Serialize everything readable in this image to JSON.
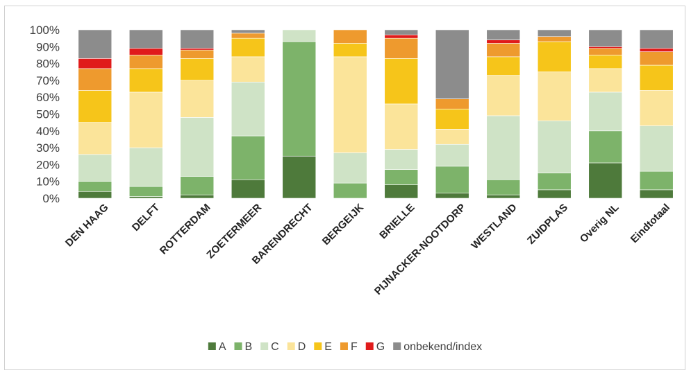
{
  "chart_data": {
    "type": "bar",
    "stacked": true,
    "categories": [
      "DEN HAAG",
      "DELFT",
      "ROTTERDAM",
      "ZOETERMEER",
      "BARENDRECHT",
      "BERGEIJK",
      "BRIELLE",
      "PIJNACKER-NOOTDORP",
      "WESTLAND",
      "ZUIDPLAS",
      "Overig NL",
      "Eindtotaal"
    ],
    "yticks": [
      "0%",
      "10%",
      "20%",
      "30%",
      "40%",
      "50%",
      "60%",
      "70%",
      "80%",
      "90%",
      "100%"
    ],
    "ylim": [
      0,
      100
    ],
    "grid": false,
    "legend_position": "bottom",
    "series": [
      {
        "name": "A",
        "color": "#4e7a3b",
        "values": [
          4,
          1,
          2,
          11,
          25,
          0,
          8,
          3,
          2,
          5,
          21,
          5
        ]
      },
      {
        "name": "B",
        "color": "#7db36a",
        "values": [
          6,
          6,
          11,
          26,
          68,
          9,
          9,
          16,
          9,
          10,
          19,
          11
        ]
      },
      {
        "name": "C",
        "color": "#cfe3c6",
        "values": [
          16,
          23,
          35,
          32,
          7,
          18,
          12,
          13,
          38,
          31,
          23,
          27
        ]
      },
      {
        "name": "D",
        "color": "#fbe49a",
        "values": [
          19,
          33,
          22,
          15,
          0,
          57,
          27,
          9,
          24,
          29,
          14,
          21
        ]
      },
      {
        "name": "E",
        "color": "#f6c51a",
        "values": [
          19,
          14,
          13,
          11,
          0,
          8,
          27,
          12,
          11,
          18,
          8,
          15
        ]
      },
      {
        "name": "F",
        "color": "#ee9a2e",
        "values": [
          13,
          8,
          5,
          3,
          0,
          8,
          12,
          6,
          8,
          3,
          4,
          8
        ]
      },
      {
        "name": "G",
        "color": "#e01b1b",
        "values": [
          6,
          4,
          1,
          0,
          0,
          0,
          2,
          0,
          2,
          0,
          1,
          2
        ]
      },
      {
        "name": "onbekend/index",
        "color": "#8c8c8c",
        "values": [
          17,
          11,
          11,
          2,
          0,
          0,
          3,
          41,
          6,
          4,
          10,
          11
        ]
      }
    ]
  }
}
